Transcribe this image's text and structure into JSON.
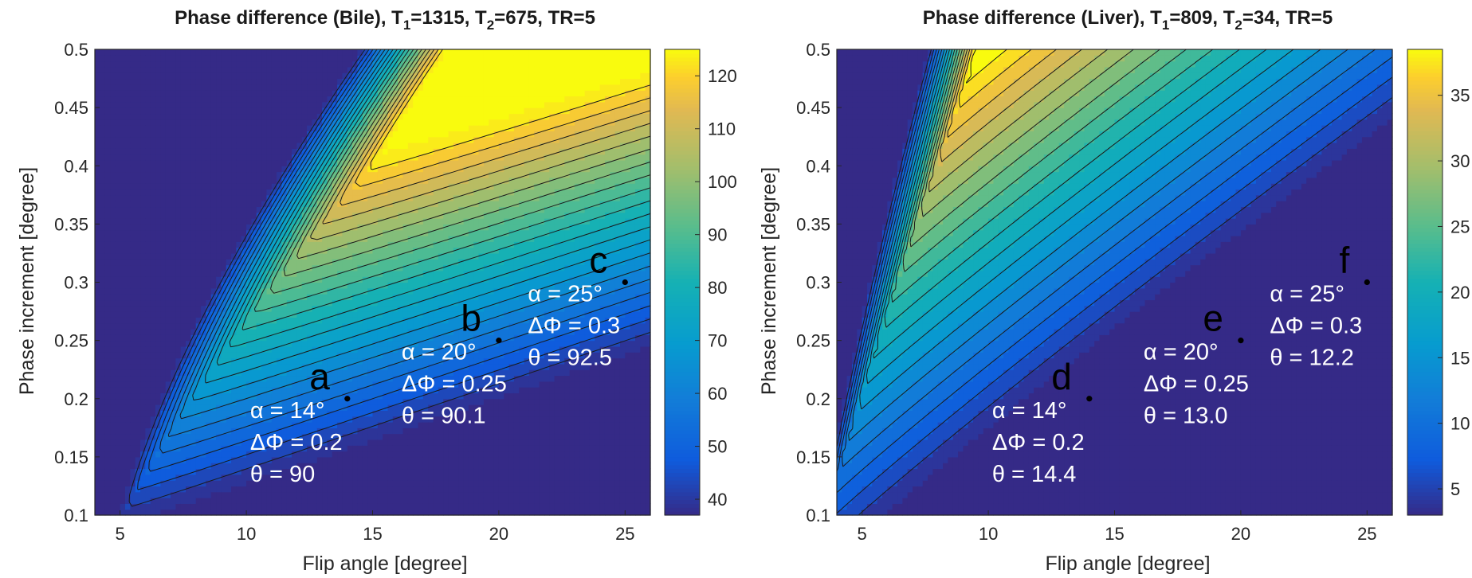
{
  "chart_data": [
    {
      "type": "contour",
      "title_parts": [
        "Phase difference (Bile), T",
        "1",
        "=1315, T",
        "2",
        "=675, TR=5"
      ],
      "xlabel": "Flip angle [degree]",
      "ylabel": "Phase increment [degree]",
      "xlim": [
        4,
        26
      ],
      "ylim": [
        0.1,
        0.5
      ],
      "xticks": [
        5,
        10,
        15,
        20,
        25
      ],
      "yticks": [
        0.1,
        0.15,
        0.2,
        0.25,
        0.3,
        0.35,
        0.4,
        0.45,
        0.5
      ],
      "ytick_labels": [
        "0.1",
        "0.15",
        "0.2",
        "0.25",
        "0.3",
        "0.35",
        "0.4",
        "0.45",
        "0.5"
      ],
      "colorbar": {
        "min": 37,
        "max": 125,
        "ticks": [
          40,
          50,
          60,
          70,
          80,
          90,
          100,
          110,
          120
        ]
      },
      "annotations": [
        {
          "letter": "a",
          "x": 14,
          "y": 0.2,
          "lines": [
            "α = 14°",
            "ΔΦ = 0.2",
            "θ = 90"
          ]
        },
        {
          "letter": "b",
          "x": 20,
          "y": 0.25,
          "lines": [
            "α = 20°",
            "ΔΦ = 0.25",
            "θ = 90.1"
          ]
        },
        {
          "letter": "c",
          "x": 25,
          "y": 0.3,
          "lines": [
            "α = 25°",
            "ΔΦ = 0.3",
            "θ = 92.5"
          ]
        }
      ]
    },
    {
      "type": "contour",
      "title_parts": [
        "Phase difference (Liver), T",
        "1",
        "=809, T",
        "2",
        "=34, TR=5"
      ],
      "xlabel": "Flip angle [degree]",
      "ylabel": "Phase increment [degree]",
      "xlim": [
        4,
        26
      ],
      "ylim": [
        0.1,
        0.5
      ],
      "xticks": [
        5,
        10,
        15,
        20,
        25
      ],
      "yticks": [
        0.1,
        0.15,
        0.2,
        0.25,
        0.3,
        0.35,
        0.4,
        0.45,
        0.5
      ],
      "ytick_labels": [
        "0.1",
        "0.15",
        "0.2",
        "0.25",
        "0.3",
        "0.35",
        "0.4",
        "0.45",
        "0.5"
      ],
      "colorbar": {
        "min": 3,
        "max": 38.5,
        "ticks": [
          5,
          10,
          15,
          20,
          25,
          30,
          35
        ]
      },
      "annotations": [
        {
          "letter": "d",
          "x": 14,
          "y": 0.2,
          "lines": [
            "α = 14°",
            "ΔΦ = 0.2",
            "θ = 14.4"
          ]
        },
        {
          "letter": "e",
          "x": 20,
          "y": 0.25,
          "lines": [
            "α = 20°",
            "ΔΦ = 0.25",
            "θ = 13.0"
          ]
        },
        {
          "letter": "f",
          "x": 25,
          "y": 0.3,
          "lines": [
            "α = 25°",
            "ΔΦ = 0.3",
            "θ = 12.2"
          ]
        }
      ]
    }
  ]
}
